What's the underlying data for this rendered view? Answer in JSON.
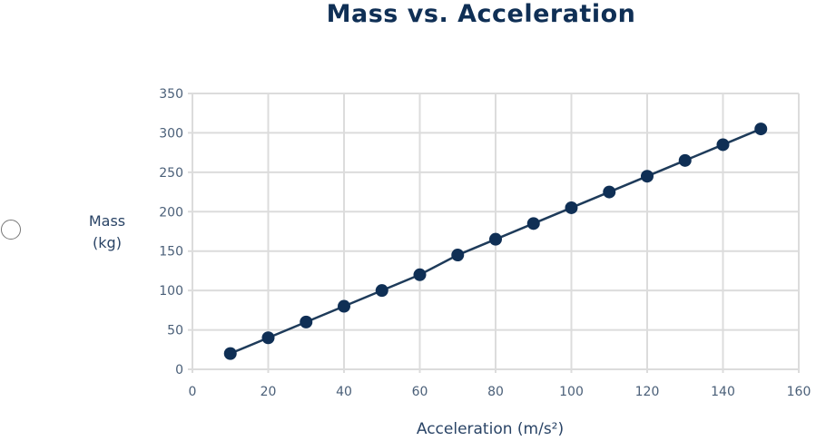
{
  "chart_data": {
    "type": "line",
    "title": "Mass vs. Acceleration",
    "xlabel": "Acceleration (m/s²)",
    "ylabel_lines": [
      "Mass",
      "(kg)"
    ],
    "xlim": [
      0,
      160
    ],
    "ylim": [
      0,
      350
    ],
    "xticks": [
      0,
      20,
      40,
      60,
      80,
      100,
      120,
      140,
      160
    ],
    "yticks": [
      0,
      50,
      100,
      150,
      200,
      250,
      300,
      350
    ],
    "grid": true,
    "series": [
      {
        "name": "Mass",
        "color": "#0f2f55",
        "x": [
          10,
          20,
          30,
          40,
          50,
          60,
          70,
          80,
          90,
          100,
          110,
          120,
          130,
          140,
          150
        ],
        "y": [
          20,
          40,
          60,
          80,
          100,
          120,
          145,
          165,
          185,
          205,
          225,
          245,
          265,
          285,
          305
        ]
      }
    ]
  }
}
